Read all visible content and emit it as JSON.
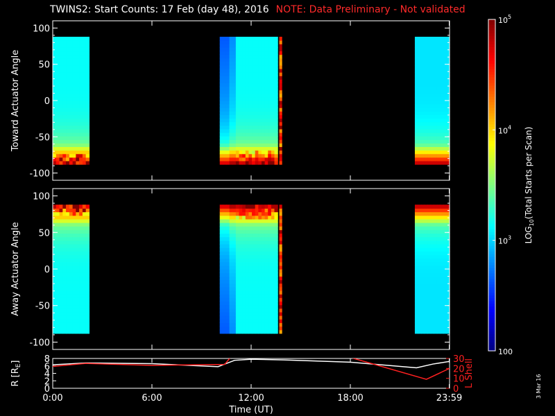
{
  "title": "TWINS2: Start Counts: 17 Feb (day  48), 2016",
  "note": "NOTE: Data Preliminary - Not validated",
  "date_stamp": "3 Mar 16",
  "chart_data": [
    {
      "type": "heatmap",
      "name": "toward",
      "ylabel": "Toward Actuator Angle",
      "ylim": [
        -110,
        110
      ],
      "yticks": [
        100,
        50,
        0,
        -50,
        -100
      ],
      "xlim": [
        0,
        24
      ],
      "data_intervals_hours": [
        [
          0,
          2.2
        ],
        [
          10.1,
          13.6
        ],
        [
          13.7,
          13.85
        ],
        [
          21.9,
          24
        ]
      ],
      "angle_range": [
        -88,
        88
      ]
    },
    {
      "type": "heatmap",
      "name": "away",
      "ylabel": "Away Actuator Angle",
      "ylim": [
        -110,
        110
      ],
      "yticks": [
        100,
        50,
        0,
        -50,
        -100
      ],
      "xlim": [
        0,
        24
      ],
      "data_intervals_hours": [
        [
          0,
          2.2
        ],
        [
          10.1,
          13.6
        ],
        [
          13.7,
          13.85
        ],
        [
          21.9,
          24
        ]
      ],
      "angle_range": [
        -88,
        88
      ]
    },
    {
      "type": "line",
      "name": "orbit",
      "ylabel_left": "R [R",
      "ylabel_left_sub": "E",
      "ylabel_right": "L Shell",
      "yticks_left": [
        0,
        2,
        4,
        6,
        8
      ],
      "yticks_right": [
        0,
        10,
        20,
        30
      ],
      "xlabel": "Time (UT)",
      "xticks": [
        {
          "t": 0,
          "label": "0:00"
        },
        {
          "t": 6,
          "label": "6:00"
        },
        {
          "t": 12,
          "label": "12:00"
        },
        {
          "t": 18,
          "label": "18:00"
        },
        {
          "t": 23.98,
          "label": "23:59"
        }
      ],
      "series": [
        {
          "axis": "left",
          "color": "#ffffff",
          "x": [
            0,
            2,
            6,
            10,
            11,
            12,
            14,
            18,
            22,
            23,
            24
          ],
          "y": [
            6.3,
            6.8,
            6.6,
            5.8,
            7.5,
            7.8,
            7.6,
            7.0,
            5.5,
            6.5,
            7.2
          ]
        },
        {
          "axis": "right",
          "color": "#ff2020",
          "x": [
            0,
            2,
            6,
            10.4,
            10.8
          ],
          "y": [
            22,
            25,
            23,
            24,
            32
          ]
        },
        {
          "axis": "right",
          "color": "#ff2020",
          "x": [
            18,
            22.6,
            24
          ],
          "y": [
            31,
            9,
            20
          ]
        }
      ]
    }
  ],
  "colorbar": {
    "label": "LOG",
    "label_sub": "10",
    "label_rest": "(Total Starts per Scan)",
    "ticks": [
      {
        "value": 100,
        "label": "100"
      },
      {
        "value": 1000,
        "label": "10",
        "exp": "3"
      },
      {
        "value": 10000,
        "label": "10",
        "exp": "4"
      },
      {
        "value": 100000,
        "label": "10",
        "exp": "5"
      }
    ],
    "range": [
      100,
      100000
    ]
  }
}
